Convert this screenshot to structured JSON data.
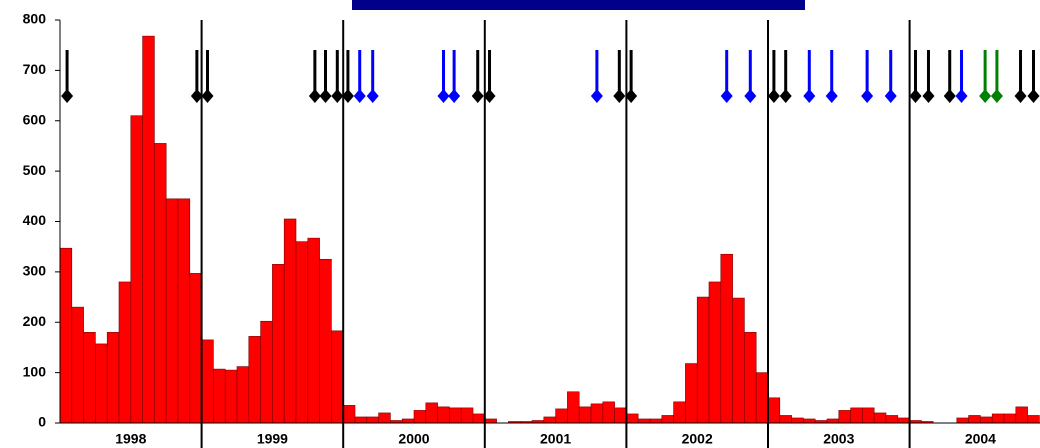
{
  "chart_data": {
    "type": "bar",
    "color": "#ff0000",
    "categories": [
      null,
      null,
      null,
      null,
      null,
      null,
      "1998",
      null,
      null,
      null,
      null,
      null,
      null,
      null,
      null,
      null,
      null,
      null,
      "1999",
      null,
      null,
      null,
      null,
      null,
      null,
      null,
      null,
      null,
      null,
      null,
      "2000",
      null,
      null,
      null,
      null,
      null,
      null,
      null,
      null,
      null,
      null,
      null,
      "2001",
      null,
      null,
      null,
      null,
      null,
      null,
      null,
      null,
      null,
      null,
      null,
      "2002",
      null,
      null,
      null,
      null,
      null,
      null,
      null,
      null,
      null,
      null,
      null,
      "2003",
      null,
      null,
      null,
      null,
      null,
      null,
      null,
      null,
      null,
      null,
      null,
      "2004",
      null,
      null,
      null,
      null
    ],
    "values": [
      347,
      230,
      180,
      157,
      180,
      280,
      610,
      768,
      555,
      445,
      445,
      297,
      165,
      107,
      105,
      112,
      172,
      202,
      315,
      405,
      360,
      367,
      325,
      183,
      35,
      12,
      12,
      20,
      5,
      8,
      25,
      40,
      32,
      30,
      30,
      18,
      8,
      0,
      3,
      3,
      5,
      12,
      28,
      62,
      32,
      38,
      42,
      30,
      18,
      8,
      8,
      15,
      42,
      118,
      250,
      280,
      335,
      248,
      180,
      100,
      50,
      15,
      10,
      8,
      5,
      8,
      25,
      30,
      30,
      20,
      15,
      10,
      5,
      3,
      0,
      0,
      10,
      15,
      12,
      18,
      18,
      32,
      15
    ],
    "ylim": [
      0,
      800
    ],
    "yticks": [
      0,
      100,
      200,
      300,
      400,
      500,
      600,
      700,
      800
    ],
    "events": {
      "x": [
        0.6,
        11.6,
        12.5,
        21.6,
        22.5,
        23.5,
        24.4,
        25.4,
        26.5,
        32.5,
        33.4,
        35.4,
        36.4,
        45.5,
        47.4,
        48.4,
        56.5,
        58.5,
        60.5,
        61.5,
        63.5,
        65.4,
        68.4,
        70.4,
        72.5,
        73.6,
        75.4,
        76.4,
        78.4,
        79.4,
        81.4,
        82.5
      ],
      "colors": [
        "#000000",
        "#000000",
        "#000000",
        "#000000",
        "#000000",
        "#000000",
        "#000000",
        "#0000ff",
        "#0000ff",
        "#0000ff",
        "#0000ff",
        "#000000",
        "#000000",
        "#0000ff",
        "#000000",
        "#000000",
        "#0000ff",
        "#0000ff",
        "#000000",
        "#000000",
        "#0000ff",
        "#0000ff",
        "#0000ff",
        "#0000ff",
        "#000000",
        "#000000",
        "#000000",
        "#0000ff",
        "#008000",
        "#008000",
        "#000000",
        "#000000"
      ]
    }
  }
}
